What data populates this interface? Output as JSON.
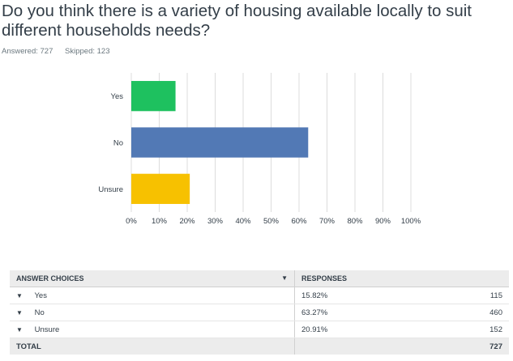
{
  "question": "Do you think there is a variety of housing available locally to suit different households needs?",
  "answered_label": "Answered: 727",
  "skipped_label": "Skipped: 123",
  "chart_data": {
    "type": "bar",
    "orientation": "horizontal",
    "categories": [
      "Yes",
      "No",
      "Unsure"
    ],
    "values": [
      15.82,
      63.27,
      20.91
    ],
    "colors": [
      "#1ec15f",
      "#5279b5",
      "#f7c100"
    ],
    "xlim": [
      0,
      100
    ],
    "xticks": [
      "0%",
      "10%",
      "20%",
      "30%",
      "40%",
      "50%",
      "60%",
      "70%",
      "80%",
      "90%",
      "100%"
    ],
    "grid": true
  },
  "table": {
    "headers": [
      "ANSWER CHOICES",
      "RESPONSES",
      ""
    ],
    "rows": [
      {
        "choice": "Yes",
        "percent": "15.82%",
        "count": "115"
      },
      {
        "choice": "No",
        "percent": "63.27%",
        "count": "460"
      },
      {
        "choice": "Unsure",
        "percent": "20.91%",
        "count": "152"
      }
    ],
    "total_label": "TOTAL",
    "total_count": "727"
  },
  "icons": {
    "caret": "caret-down-icon"
  }
}
